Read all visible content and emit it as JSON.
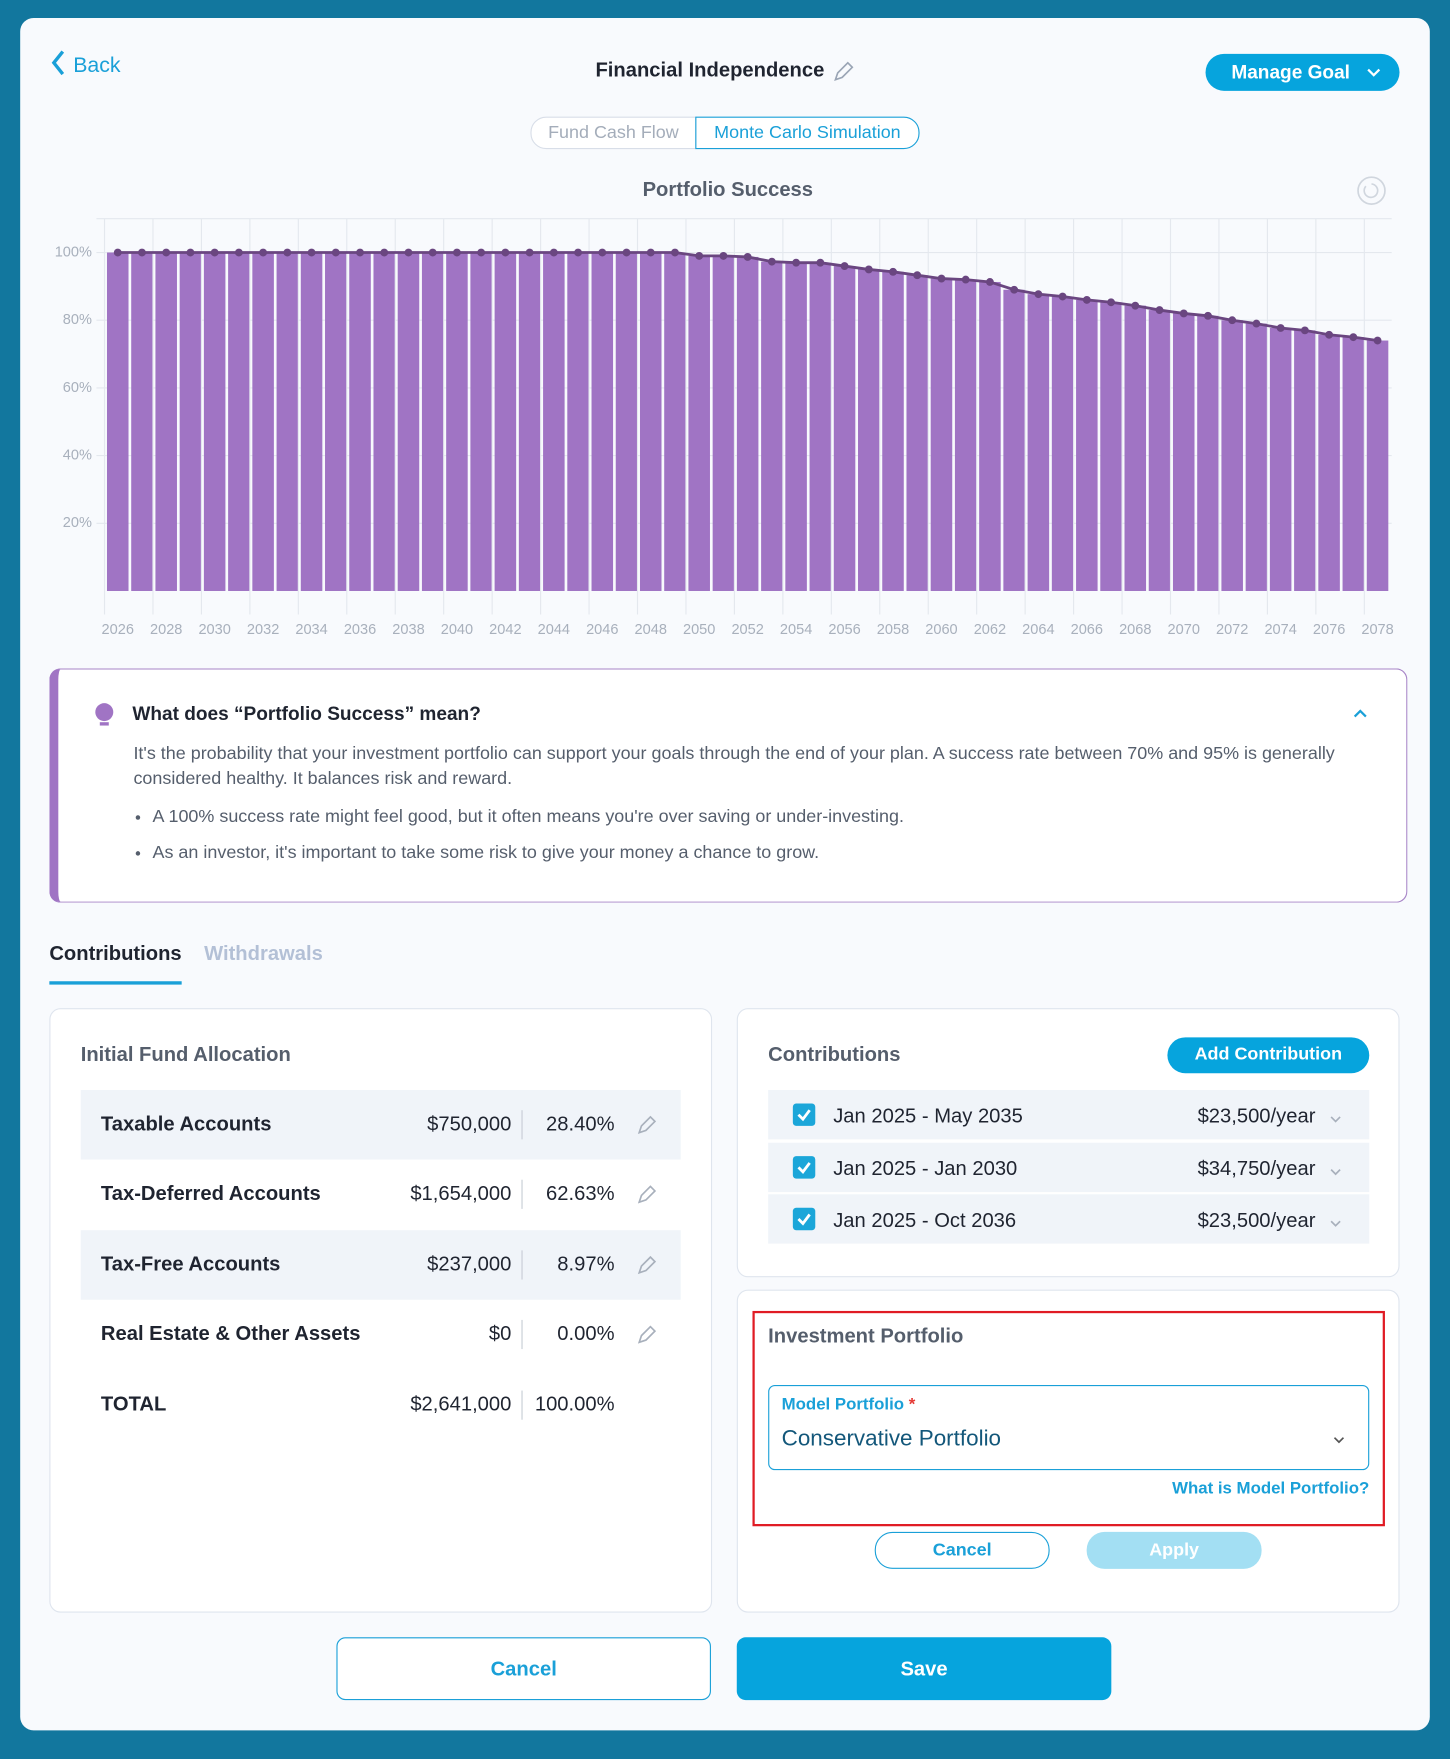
{
  "header": {
    "back": "Back",
    "title": "Financial Independence",
    "manage_goal": "Manage Goal"
  },
  "view_tabs": [
    "Fund Cash Flow",
    "Monte Carlo Simulation"
  ],
  "chart_data": {
    "type": "bar",
    "title": "Portfolio Success",
    "categories": [
      "2026",
      null,
      "2028",
      null,
      "2030",
      null,
      "2032",
      null,
      "2034",
      null,
      "2036",
      null,
      "2038",
      null,
      "2040",
      null,
      "2042",
      null,
      "2044",
      null,
      "2046",
      null,
      "2048",
      null,
      "2050",
      null,
      "2052",
      null,
      "2054",
      null,
      "2056",
      null,
      "2058",
      null,
      "2060",
      null,
      "2062",
      null,
      "2064",
      null,
      "2066",
      null,
      "2068",
      null,
      "2070",
      null,
      "2072",
      null,
      "2074",
      null,
      "2076",
      null,
      "2078"
    ],
    "values": [
      100,
      100,
      100,
      100,
      100,
      100,
      100,
      100,
      100,
      100,
      100,
      100,
      100,
      100,
      100,
      100,
      100,
      100,
      100,
      100,
      100,
      100,
      100,
      100,
      99,
      99,
      98.7,
      97.3,
      97,
      97,
      96,
      95,
      94.3,
      93.3,
      92.3,
      92,
      91.3,
      89,
      87.7,
      87,
      86,
      85.3,
      84.3,
      83,
      82,
      81.3,
      80,
      79,
      77.7,
      77,
      75.7,
      75,
      74
    ],
    "color": "#a074c4",
    "line_color": "#6a4680",
    "show_line": true,
    "ylim": [
      0,
      110
    ],
    "yticks": [
      {
        "value": 20,
        "label": "20%"
      },
      {
        "value": 40,
        "label": "40%"
      },
      {
        "value": 60,
        "label": "60%"
      },
      {
        "value": 80,
        "label": "80%"
      },
      {
        "value": 100,
        "label": "100%"
      }
    ],
    "grid": true
  },
  "info": {
    "title": "What does “Portfolio Success” mean?",
    "body": "It's the probability that your investment portfolio can support your goals through the end of your plan. A success rate between 70% and 95% is generally considered healthy. It balances risk and reward.",
    "bullets": [
      "A 100% success rate might feel good, but it often means you're over saving or under-investing.",
      "As an investor, it's important to take some risk to give your money a chance to grow."
    ]
  },
  "section_tabs": [
    "Contributions",
    "Withdrawals"
  ],
  "allocation": {
    "title": "Initial Fund Allocation",
    "rows": [
      {
        "name": "Taxable Accounts",
        "amount": "$750,000",
        "pct": "28.40%"
      },
      {
        "name": "Tax-Deferred Accounts",
        "amount": "$1,654,000",
        "pct": "62.63%"
      },
      {
        "name": "Tax-Free Accounts",
        "amount": "$237,000",
        "pct": "8.97%"
      },
      {
        "name": "Real Estate & Other Assets",
        "amount": "$0",
        "pct": "0.00%"
      }
    ],
    "total": {
      "name": "TOTAL",
      "amount": "$2,641,000",
      "pct": "100.00%"
    }
  },
  "contributions": {
    "title": "Contributions",
    "add_button": "Add Contribution",
    "rows": [
      {
        "period": "Jan 2025 - May 2035",
        "amount": "$23,500/year"
      },
      {
        "period": "Jan 2025 - Jan 2030",
        "amount": "$34,750/year"
      },
      {
        "period": "Jan 2025 - Oct 2036",
        "amount": "$23,500/year"
      }
    ]
  },
  "investment": {
    "title": "Investment Portfolio",
    "field_label": "Model Portfolio",
    "required": "*",
    "value": "Conservative Portfolio",
    "help_link": "What is Model Portfolio?",
    "cancel": "Cancel",
    "apply": "Apply"
  },
  "footer": {
    "cancel": "Cancel",
    "save": "Save"
  }
}
